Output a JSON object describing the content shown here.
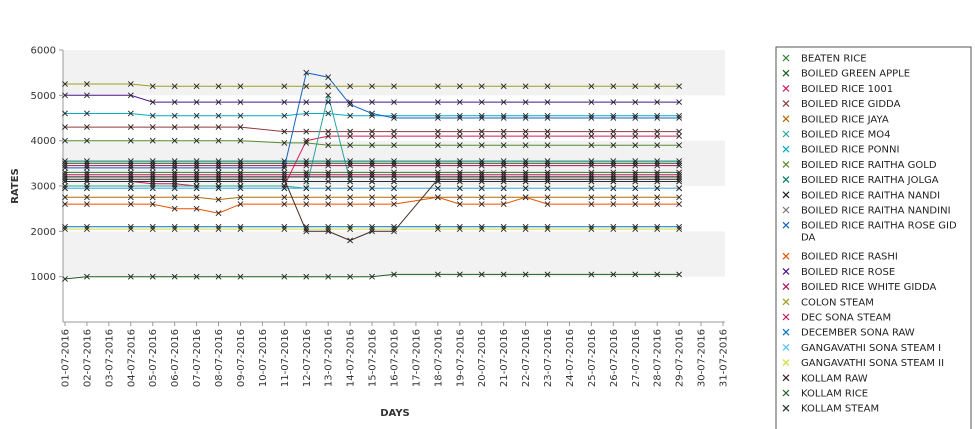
{
  "chart_data": {
    "type": "line",
    "title": "",
    "xlabel": "DAYS",
    "ylabel": "RATES",
    "ylim": [
      0,
      6000
    ],
    "yticks": [
      1000,
      2000,
      3000,
      4000,
      5000,
      6000
    ],
    "grid": "alternating horizontal bands",
    "legend_position": "right",
    "categories": [
      "01-07-2016",
      "02-07-2016",
      "03-07-2016",
      "04-07-2016",
      "05-07-2016",
      "06-07-2016",
      "07-07-2016",
      "08-07-2016",
      "09-07-2016",
      "10-07-2016",
      "11-07-2016",
      "12-07-2016",
      "13-07-2016",
      "14-07-2016",
      "15-07-2016",
      "16-07-2016",
      "17-07-2016",
      "18-07-2016",
      "19-07-2016",
      "20-07-2016",
      "21-07-2016",
      "22-07-2016",
      "23-07-2016",
      "24-07-2016",
      "25-07-2016",
      "26-07-2016",
      "27-07-2016",
      "28-07-2016",
      "29-07-2016",
      "30-07-2016",
      "31-07-2016"
    ],
    "series": [
      {
        "name": "BEATEN RICE",
        "color": "#2e7d32",
        "values": [
          3300,
          3300,
          null,
          3300,
          3300,
          3300,
          3300,
          3300,
          3300,
          null,
          3300,
          3300,
          3300,
          3300,
          3300,
          3300,
          null,
          3300,
          3300,
          3300,
          3300,
          3300,
          3300,
          null,
          3300,
          3300,
          3300,
          3300,
          3300,
          null,
          null
        ]
      },
      {
        "name": "BOILED GREEN APPLE",
        "color": "#1b5e20",
        "values": [
          3500,
          3500,
          null,
          3500,
          3500,
          3500,
          3500,
          3500,
          3500,
          null,
          3500,
          3500,
          3500,
          3500,
          3500,
          3500,
          null,
          3500,
          3500,
          3500,
          3500,
          3500,
          3500,
          null,
          3500,
          3500,
          3500,
          3500,
          3500,
          null,
          null
        ]
      },
      {
        "name": "BOILED RICE 1001",
        "color": "#d81b60",
        "values": [
          3100,
          3100,
          null,
          3100,
          3050,
          3050,
          3000,
          3000,
          3000,
          null,
          3000,
          4000,
          4100,
          4100,
          4100,
          4100,
          null,
          4100,
          4100,
          4100,
          4100,
          4100,
          4100,
          null,
          4100,
          4100,
          4100,
          4100,
          4100,
          null,
          null
        ]
      },
      {
        "name": "BOILED RICE GIDDA",
        "color": "#8d3b3b",
        "values": [
          4300,
          4300,
          null,
          4300,
          4300,
          4300,
          4300,
          4300,
          4300,
          null,
          4200,
          4200,
          4200,
          4200,
          4200,
          4200,
          null,
          4200,
          4200,
          4200,
          4200,
          4200,
          4200,
          null,
          4200,
          4200,
          4200,
          4200,
          4200,
          null,
          null
        ]
      },
      {
        "name": "BOILED RICE JAYA",
        "color": "#b26a00",
        "values": [
          2750,
          2750,
          null,
          2750,
          2750,
          2750,
          2750,
          2700,
          2750,
          null,
          2750,
          2750,
          2750,
          2750,
          2750,
          2750,
          null,
          2750,
          2750,
          2750,
          2750,
          2750,
          2750,
          null,
          2750,
          2750,
          2750,
          2750,
          2750,
          null,
          null
        ]
      },
      {
        "name": "BOILED RICE MO4",
        "color": "#26a69a",
        "values": [
          3000,
          3000,
          null,
          3000,
          3000,
          3000,
          3000,
          3000,
          3000,
          null,
          3000,
          2950,
          5000,
          3100,
          3100,
          3100,
          null,
          3100,
          3100,
          3100,
          3100,
          3100,
          3100,
          null,
          3100,
          3100,
          3100,
          3100,
          3100,
          null,
          null
        ]
      },
      {
        "name": "BOILED RICE PONNI",
        "color": "#00acc1",
        "values": [
          4600,
          4600,
          null,
          4600,
          4550,
          4550,
          4550,
          4550,
          4550,
          null,
          4550,
          4600,
          4600,
          4550,
          4550,
          4550,
          null,
          4550,
          4550,
          4550,
          4550,
          4550,
          4550,
          null,
          4550,
          4550,
          4550,
          4550,
          4550,
          null,
          null
        ]
      },
      {
        "name": "BOILED RICE RAITHA GOLD",
        "color": "#558b2f",
        "values": [
          4000,
          4000,
          null,
          4000,
          4000,
          4000,
          4000,
          4000,
          4000,
          null,
          3950,
          3950,
          3900,
          3900,
          3900,
          3900,
          null,
          3900,
          3900,
          3900,
          3900,
          3900,
          3900,
          null,
          3900,
          3900,
          3900,
          3900,
          3900,
          null,
          null
        ]
      },
      {
        "name": "BOILED RICE RAITHA JOLGA",
        "color": "#00796b",
        "values": [
          3550,
          3550,
          null,
          3550,
          3550,
          3550,
          3550,
          3550,
          3550,
          null,
          3550,
          3550,
          3550,
          3550,
          3550,
          3550,
          null,
          3550,
          3550,
          3550,
          3550,
          3550,
          3550,
          null,
          3550,
          3550,
          3550,
          3550,
          3550,
          null,
          null
        ]
      },
      {
        "name": "BOILED RICE RAITHA NANDI",
        "color": "#212121",
        "values": [
          3200,
          3200,
          null,
          3200,
          3200,
          3200,
          3200,
          3200,
          3200,
          null,
          3200,
          3200,
          3200,
          3200,
          3200,
          3200,
          null,
          3200,
          3200,
          3200,
          3200,
          3200,
          3200,
          null,
          3200,
          3200,
          3200,
          3200,
          3200,
          null,
          null
        ]
      },
      {
        "name": "BOILED RICE RAITHA NANDINI",
        "color": "#757575",
        "values": [
          2950,
          2950,
          null,
          2950,
          2950,
          2950,
          2950,
          2950,
          2950,
          null,
          2950,
          2950,
          2950,
          2950,
          2950,
          2950,
          null,
          2950,
          2950,
          2950,
          2950,
          2950,
          2950,
          null,
          2950,
          2950,
          2950,
          2950,
          2950,
          null,
          null
        ]
      },
      {
        "name": "BOILED RICE RAITHA ROSE GIDDA",
        "color": "#1565c0",
        "values": [
          3400,
          3400,
          null,
          3400,
          3400,
          3400,
          3400,
          3400,
          3400,
          null,
          3400,
          5500,
          5400,
          4800,
          4600,
          4500,
          null,
          4500,
          4500,
          4500,
          4500,
          4500,
          4500,
          null,
          4500,
          4500,
          4500,
          4500,
          4500,
          null,
          null
        ]
      },
      {
        "name": "BOILED RICE RASHI",
        "color": "#e65100",
        "values": [
          2600,
          2600,
          null,
          2600,
          2600,
          2500,
          2500,
          2400,
          2600,
          null,
          2600,
          2600,
          2600,
          2600,
          2600,
          2600,
          null,
          2750,
          2600,
          2600,
          2600,
          2750,
          2600,
          null,
          2600,
          2600,
          2600,
          2600,
          2600,
          null,
          null
        ]
      },
      {
        "name": "BOILED RICE ROSE",
        "color": "#4a148c",
        "values": [
          5000,
          5000,
          null,
          5000,
          4850,
          4850,
          4850,
          4850,
          4850,
          null,
          4850,
          4850,
          4850,
          4850,
          4850,
          4850,
          null,
          4850,
          4850,
          4850,
          4850,
          4850,
          4850,
          null,
          4850,
          4850,
          4850,
          4850,
          4850,
          null,
          null
        ]
      },
      {
        "name": "BOILED RICE WHITE GIDDA",
        "color": "#ad1457",
        "values": [
          3450,
          3450,
          null,
          3450,
          3450,
          3450,
          3450,
          3450,
          3450,
          null,
          3450,
          3450,
          3450,
          3450,
          3450,
          3450,
          null,
          3450,
          3450,
          3450,
          3450,
          3450,
          3450,
          null,
          3450,
          3450,
          3450,
          3450,
          3450,
          null,
          null
        ]
      },
      {
        "name": "COLON STEAM",
        "color": "#9e9d24",
        "values": [
          5250,
          5250,
          null,
          5250,
          5200,
          5200,
          5200,
          5200,
          5200,
          null,
          5200,
          5200,
          5200,
          5200,
          5200,
          5200,
          null,
          5200,
          5200,
          5200,
          5200,
          5200,
          5200,
          null,
          5200,
          5200,
          5200,
          5200,
          5200,
          null,
          null
        ]
      },
      {
        "name": "DEC SONA STEAM",
        "color": "#c2185b",
        "values": [
          3250,
          3250,
          null,
          3250,
          3250,
          3250,
          3250,
          3250,
          3250,
          null,
          3250,
          3250,
          3250,
          3250,
          3250,
          3250,
          null,
          3250,
          3250,
          3250,
          3250,
          3250,
          3250,
          null,
          3250,
          3250,
          3250,
          3250,
          3250,
          null,
          null
        ]
      },
      {
        "name": "DECEMBER SONA RAW",
        "color": "#0277bd",
        "values": [
          2100,
          2100,
          null,
          2100,
          2100,
          2100,
          2100,
          2100,
          2100,
          null,
          2100,
          2100,
          2100,
          2100,
          2100,
          2100,
          null,
          2100,
          2100,
          2100,
          2100,
          2100,
          2100,
          null,
          2100,
          2100,
          2100,
          2100,
          2100,
          null,
          null
        ]
      },
      {
        "name": "GANGAVATHI SONA STEAM I",
        "color": "#4fc3f7",
        "values": [
          2950,
          2950,
          null,
          2950,
          2950,
          2950,
          2950,
          2950,
          2950,
          null,
          2950,
          2950,
          2950,
          2950,
          2950,
          2950,
          null,
          2950,
          2950,
          2950,
          2950,
          2950,
          2950,
          null,
          2950,
          2950,
          2950,
          2950,
          2950,
          null,
          null
        ]
      },
      {
        "name": "GANGAVATHI SONA STEAM II",
        "color": "#cddc39",
        "values": [
          2050,
          2050,
          null,
          2050,
          2050,
          2050,
          2050,
          2050,
          2050,
          null,
          2050,
          2050,
          2050,
          2050,
          2050,
          2050,
          null,
          2050,
          2050,
          2050,
          2050,
          2050,
          2050,
          null,
          2050,
          2050,
          2050,
          2050,
          2050,
          null,
          null
        ]
      },
      {
        "name": "KOLLAM RAW",
        "color": "#3e2723",
        "values": [
          3150,
          3150,
          null,
          3150,
          3150,
          3150,
          3150,
          3150,
          3150,
          null,
          3150,
          2000,
          2000,
          1800,
          2000,
          2000,
          null,
          3150,
          3150,
          3150,
          3150,
          3150,
          3150,
          null,
          3150,
          3150,
          3150,
          3150,
          3150,
          null,
          null
        ]
      },
      {
        "name": "KOLLAM RICE",
        "color": "#1b5e20",
        "values": [
          950,
          1000,
          null,
          1000,
          1000,
          1000,
          1000,
          1000,
          1000,
          null,
          1000,
          1000,
          1000,
          1000,
          1000,
          1050,
          null,
          1050,
          1050,
          1050,
          1050,
          1050,
          1050,
          null,
          1050,
          1050,
          1050,
          1050,
          1050,
          null,
          null
        ]
      },
      {
        "name": "KOLLAM STEAM",
        "color": "#263238",
        "values": [
          3100,
          3100,
          null,
          3100,
          3100,
          3100,
          3100,
          3100,
          3100,
          null,
          3100,
          3100,
          3100,
          3100,
          3100,
          3100,
          null,
          3100,
          3100,
          3100,
          3100,
          3100,
          3100,
          null,
          3100,
          3100,
          3100,
          3100,
          3100,
          null,
          null
        ]
      }
    ]
  }
}
